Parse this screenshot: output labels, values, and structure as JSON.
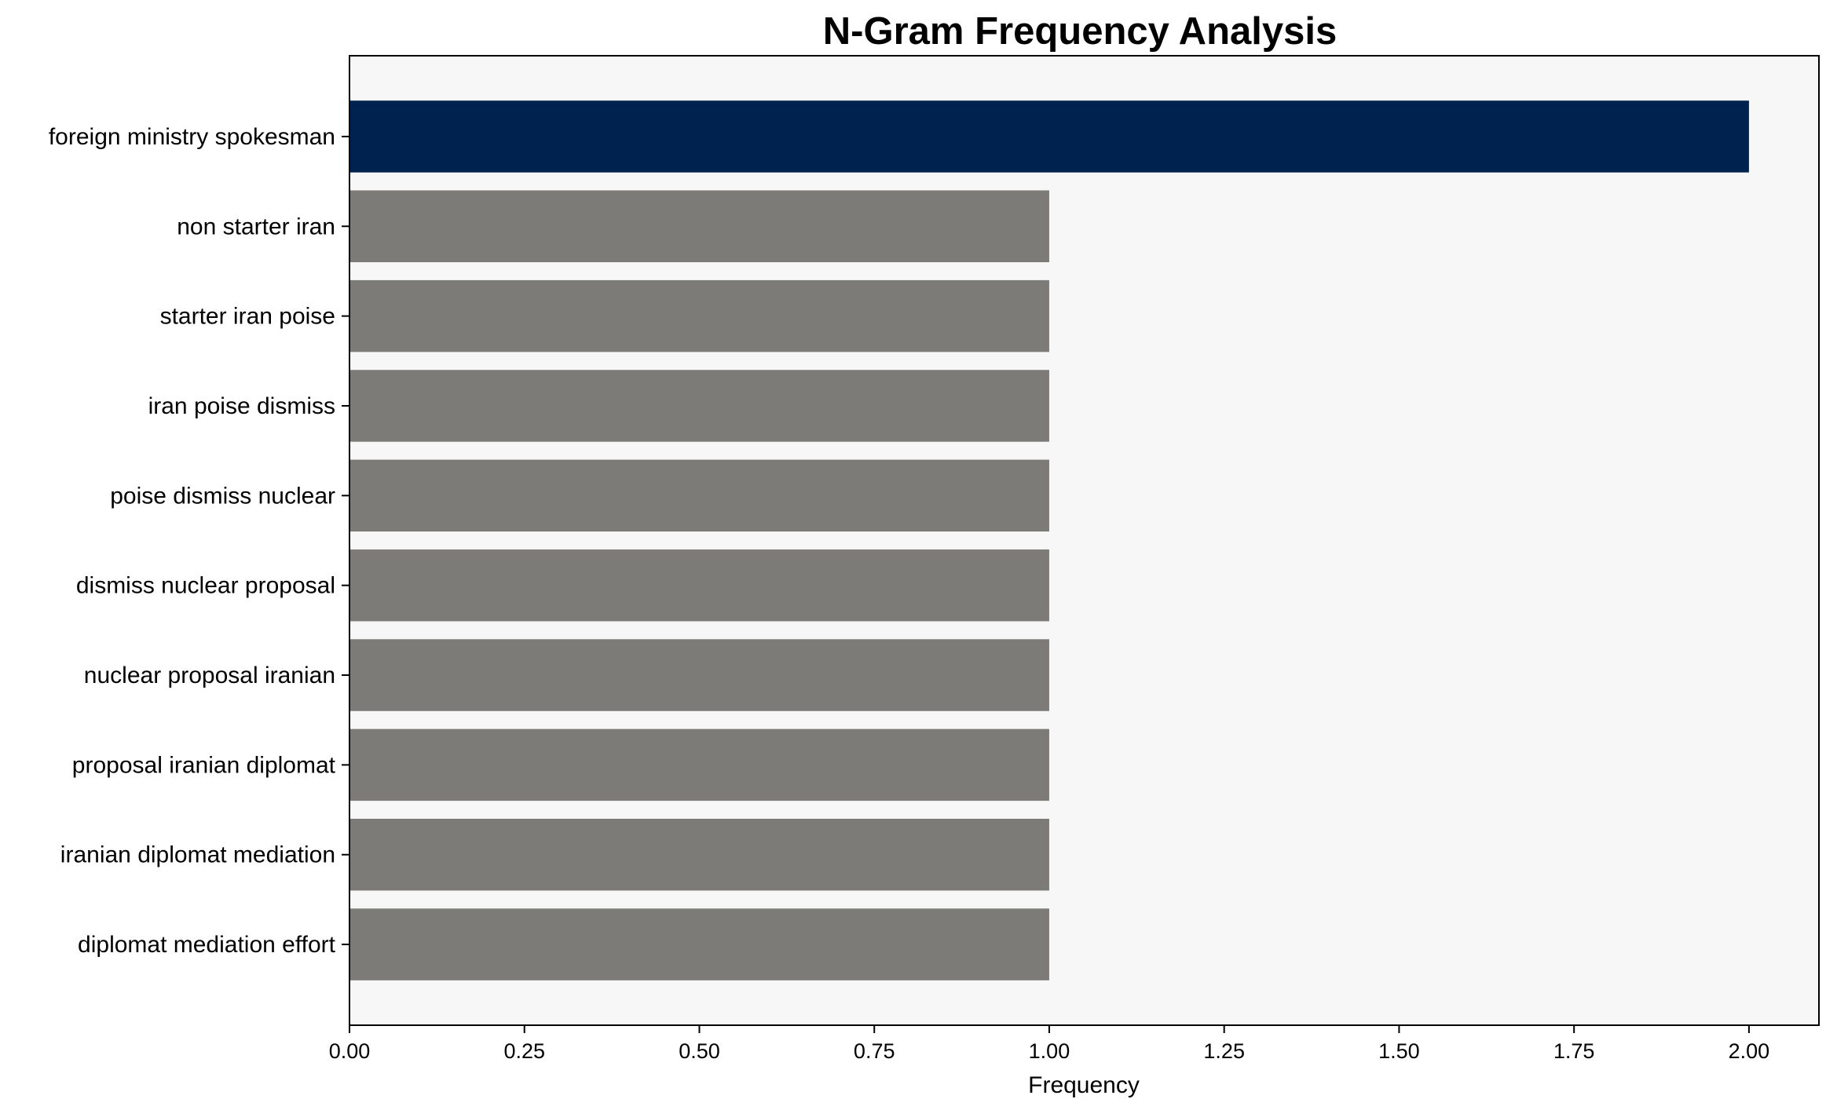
{
  "chart_data": {
    "type": "bar",
    "orientation": "horizontal",
    "title": "N-Gram Frequency Analysis",
    "xlabel": "Frequency",
    "ylabel": "",
    "categories": [
      "foreign ministry spokesman",
      "non starter iran",
      "starter iran poise",
      "iran poise dismiss",
      "poise dismiss nuclear",
      "dismiss nuclear proposal",
      "nuclear proposal iranian",
      "proposal iranian diplomat",
      "iranian diplomat mediation",
      "diplomat mediation effort"
    ],
    "values": [
      2,
      1,
      1,
      1,
      1,
      1,
      1,
      1,
      1,
      1
    ],
    "bar_colors": [
      "#00224E",
      "#7C7B78",
      "#7C7B78",
      "#7C7B78",
      "#7C7B78",
      "#7C7B78",
      "#7C7B78",
      "#7C7B78",
      "#7C7B78",
      "#7C7B78"
    ],
    "xlim": [
      0,
      2.1
    ],
    "xticks": [
      "0.00",
      "0.25",
      "0.50",
      "0.75",
      "1.00",
      "1.25",
      "1.50",
      "1.75",
      "2.00"
    ],
    "grid": false,
    "plot_background": "#F7F7F7"
  }
}
